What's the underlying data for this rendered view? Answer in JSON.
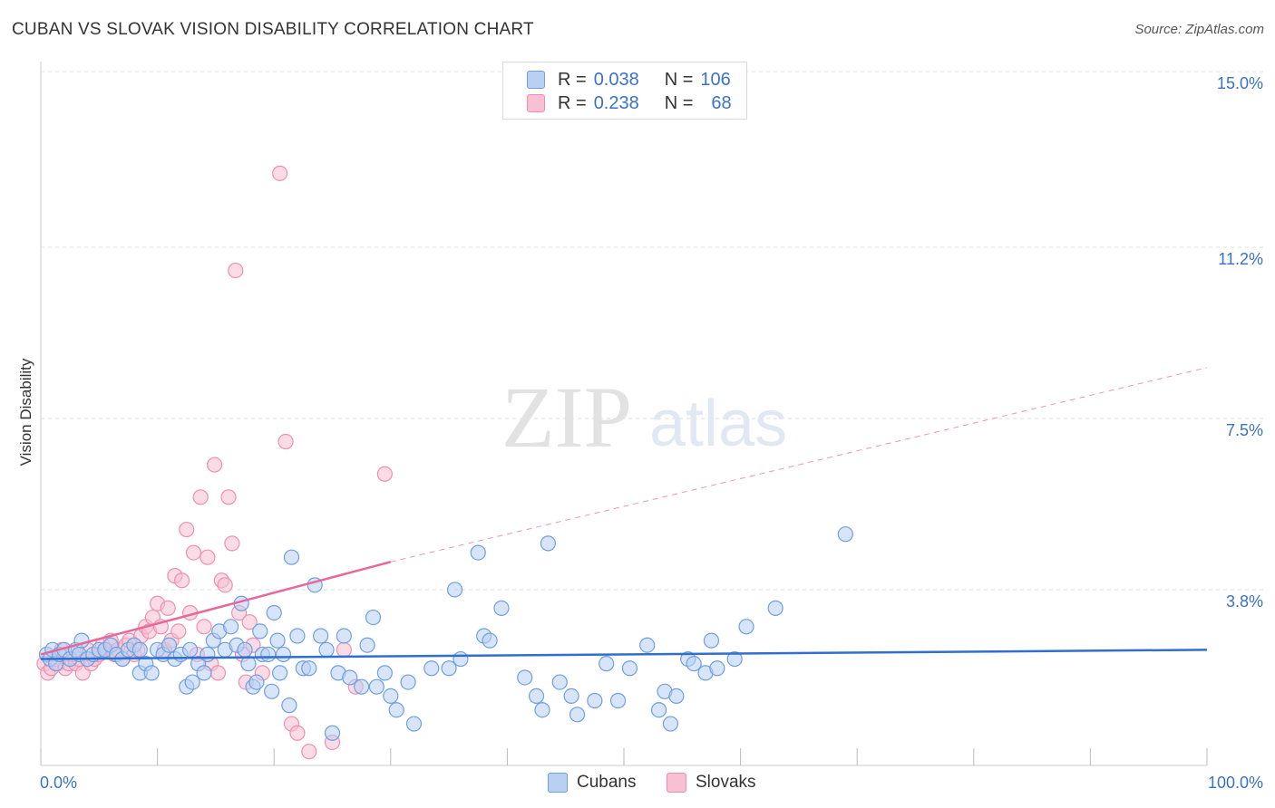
{
  "header": {
    "title": "CUBAN VS SLOVAK VISION DISABILITY CORRELATION CHART",
    "source": "Source: ZipAtlas.com"
  },
  "watermark": {
    "zip": "ZIP",
    "atlas": "atlas"
  },
  "legend": {
    "rows": [
      {
        "r_label": "R =",
        "r_value": "0.038",
        "n_label": "N =",
        "n_value": "106",
        "color": "#6f9fe0"
      },
      {
        "r_label": "R =",
        "r_value": "0.238",
        "n_label": "N =",
        "n_value": "68",
        "color": "#ef8fb0"
      }
    ]
  },
  "bottom_legend": {
    "items": [
      {
        "label": "Cubans",
        "color": "#6f9fe0"
      },
      {
        "label": "Slovaks",
        "color": "#ef8fb0"
      }
    ]
  },
  "colors": {
    "cuban_fill": "#b8d0f2",
    "cuban_stroke": "#6f9fe0",
    "cuban_line": "#2f6fcf",
    "slovak_fill": "#f8c0d2",
    "slovak_stroke": "#ef8fb0",
    "slovak_line": "#e8669a",
    "axis_text": "#3a72c4",
    "grid": "#dddddd"
  },
  "chart_data": {
    "type": "scatter",
    "title": "CUBAN VS SLOVAK VISION DISABILITY CORRELATION CHART",
    "xlabel": "",
    "ylabel": "Vision Disability",
    "xlim": [
      0,
      100
    ],
    "ylim": [
      0,
      15
    ],
    "x_tick_labels": [
      "0.0%",
      "100.0%"
    ],
    "y_ticks": [
      3.8,
      7.5,
      11.2,
      15.0
    ],
    "y_tick_labels": [
      "3.8%",
      "7.5%",
      "11.2%",
      "15.0%"
    ],
    "grid": true,
    "legend_position": "top-center",
    "series": [
      {
        "name": "Cubans",
        "stats": {
          "R": 0.038,
          "N": 106
        },
        "trend": {
          "x": [
            0,
            100
          ],
          "y": [
            2.3,
            2.5
          ]
        },
        "points": [
          [
            0.5,
            2.4
          ],
          [
            0.8,
            2.3
          ],
          [
            1.0,
            2.5
          ],
          [
            1.3,
            2.2
          ],
          [
            1.6,
            2.4
          ],
          [
            2.0,
            2.5
          ],
          [
            2.5,
            2.3
          ],
          [
            3.0,
            2.5
          ],
          [
            3.3,
            2.4
          ],
          [
            3.5,
            2.7
          ],
          [
            4.0,
            2.3
          ],
          [
            4.5,
            2.4
          ],
          [
            5.0,
            2.5
          ],
          [
            5.5,
            2.5
          ],
          [
            6.0,
            2.6
          ],
          [
            6.5,
            2.4
          ],
          [
            7.0,
            2.3
          ],
          [
            7.5,
            2.5
          ],
          [
            8.0,
            2.6
          ],
          [
            8.5,
            2.5
          ],
          [
            8.5,
            2.0
          ],
          [
            9.0,
            2.2
          ],
          [
            9.5,
            2.0
          ],
          [
            10.0,
            2.5
          ],
          [
            10.5,
            2.4
          ],
          [
            11.0,
            2.6
          ],
          [
            11.5,
            2.3
          ],
          [
            12.0,
            2.4
          ],
          [
            12.5,
            1.7
          ],
          [
            12.8,
            2.5
          ],
          [
            13.0,
            1.8
          ],
          [
            13.5,
            2.2
          ],
          [
            14.0,
            2.0
          ],
          [
            14.3,
            2.4
          ],
          [
            14.8,
            2.7
          ],
          [
            15.3,
            2.9
          ],
          [
            15.8,
            2.5
          ],
          [
            16.3,
            3.0
          ],
          [
            16.8,
            2.6
          ],
          [
            17.2,
            3.5
          ],
          [
            17.5,
            2.5
          ],
          [
            17.8,
            2.2
          ],
          [
            18.2,
            1.7
          ],
          [
            18.5,
            1.8
          ],
          [
            18.8,
            2.9
          ],
          [
            19.0,
            2.4
          ],
          [
            19.5,
            2.4
          ],
          [
            19.8,
            1.6
          ],
          [
            20.0,
            3.3
          ],
          [
            20.3,
            2.7
          ],
          [
            20.5,
            2.0
          ],
          [
            20.8,
            2.4
          ],
          [
            21.3,
            1.3
          ],
          [
            21.5,
            4.5
          ],
          [
            22.0,
            2.8
          ],
          [
            22.5,
            2.1
          ],
          [
            23.0,
            2.1
          ],
          [
            23.5,
            3.9
          ],
          [
            24.0,
            2.8
          ],
          [
            24.5,
            2.5
          ],
          [
            25.0,
            0.7
          ],
          [
            25.5,
            2.0
          ],
          [
            26.0,
            2.8
          ],
          [
            26.5,
            1.9
          ],
          [
            27.5,
            1.7
          ],
          [
            28.0,
            2.6
          ],
          [
            28.5,
            3.2
          ],
          [
            28.8,
            1.7
          ],
          [
            29.5,
            2.0
          ],
          [
            30.0,
            1.5
          ],
          [
            30.5,
            1.2
          ],
          [
            31.5,
            1.8
          ],
          [
            32.0,
            0.9
          ],
          [
            33.5,
            2.1
          ],
          [
            35.5,
            3.8
          ],
          [
            35.0,
            2.1
          ],
          [
            36.0,
            2.3
          ],
          [
            37.5,
            4.6
          ],
          [
            38.0,
            2.8
          ],
          [
            38.5,
            2.7
          ],
          [
            39.5,
            3.4
          ],
          [
            41.5,
            1.9
          ],
          [
            42.5,
            1.5
          ],
          [
            43.0,
            1.2
          ],
          [
            43.5,
            4.8
          ],
          [
            44.5,
            1.8
          ],
          [
            45.5,
            1.5
          ],
          [
            46.0,
            1.1
          ],
          [
            47.5,
            1.4
          ],
          [
            48.5,
            2.2
          ],
          [
            49.5,
            1.4
          ],
          [
            50.5,
            2.1
          ],
          [
            52.0,
            2.6
          ],
          [
            53.0,
            1.2
          ],
          [
            53.5,
            1.6
          ],
          [
            54.0,
            0.9
          ],
          [
            54.5,
            1.5
          ],
          [
            55.5,
            2.3
          ],
          [
            56.0,
            2.2
          ],
          [
            57.0,
            2.0
          ],
          [
            57.5,
            2.7
          ],
          [
            58.0,
            2.1
          ],
          [
            59.5,
            2.3
          ],
          [
            60.5,
            3.0
          ],
          [
            63.0,
            3.4
          ],
          [
            69.0,
            5.0
          ]
        ]
      },
      {
        "name": "Slovaks",
        "stats": {
          "R": 0.238,
          "N": 68
        },
        "trend": {
          "x": [
            0,
            30,
            100
          ],
          "y": [
            2.4,
            4.4,
            8.6
          ],
          "solid_until_x": 30
        },
        "points": [
          [
            0.3,
            2.2
          ],
          [
            0.6,
            2.0
          ],
          [
            0.9,
            2.1
          ],
          [
            1.2,
            2.3
          ],
          [
            1.5,
            2.2
          ],
          [
            1.8,
            2.5
          ],
          [
            2.1,
            2.1
          ],
          [
            2.4,
            2.2
          ],
          [
            2.7,
            2.4
          ],
          [
            3.0,
            2.2
          ],
          [
            3.3,
            2.3
          ],
          [
            3.6,
            2.0
          ],
          [
            4.0,
            2.5
          ],
          [
            4.3,
            2.2
          ],
          [
            4.6,
            2.3
          ],
          [
            5.0,
            2.4
          ],
          [
            5.3,
            2.6
          ],
          [
            5.6,
            2.5
          ],
          [
            6.0,
            2.7
          ],
          [
            6.3,
            2.4
          ],
          [
            6.6,
            2.5
          ],
          [
            7.0,
            2.3
          ],
          [
            7.3,
            2.6
          ],
          [
            7.6,
            2.7
          ],
          [
            8.0,
            2.4
          ],
          [
            8.3,
            2.5
          ],
          [
            8.6,
            2.8
          ],
          [
            9.0,
            3.0
          ],
          [
            9.3,
            2.9
          ],
          [
            9.6,
            3.2
          ],
          [
            10.0,
            3.5
          ],
          [
            10.3,
            3.0
          ],
          [
            10.6,
            2.5
          ],
          [
            10.9,
            3.4
          ],
          [
            11.2,
            2.7
          ],
          [
            11.5,
            4.1
          ],
          [
            11.8,
            2.9
          ],
          [
            12.1,
            4.0
          ],
          [
            12.5,
            5.1
          ],
          [
            12.8,
            3.3
          ],
          [
            13.1,
            4.6
          ],
          [
            13.4,
            2.4
          ],
          [
            13.7,
            5.8
          ],
          [
            14.0,
            3.0
          ],
          [
            14.3,
            4.5
          ],
          [
            14.6,
            2.2
          ],
          [
            14.9,
            6.5
          ],
          [
            15.2,
            2.0
          ],
          [
            15.5,
            4.0
          ],
          [
            15.8,
            3.9
          ],
          [
            16.1,
            5.8
          ],
          [
            16.4,
            4.8
          ],
          [
            16.7,
            10.7
          ],
          [
            17.0,
            3.3
          ],
          [
            17.3,
            2.4
          ],
          [
            17.6,
            1.8
          ],
          [
            17.9,
            3.1
          ],
          [
            18.2,
            2.6
          ],
          [
            19.0,
            2.0
          ],
          [
            20.5,
            12.8
          ],
          [
            21.0,
            7.0
          ],
          [
            21.5,
            0.9
          ],
          [
            22.0,
            0.7
          ],
          [
            23.0,
            0.3
          ],
          [
            25.0,
            0.5
          ],
          [
            26.0,
            2.5
          ],
          [
            27.0,
            1.7
          ],
          [
            29.5,
            6.3
          ]
        ]
      }
    ]
  }
}
